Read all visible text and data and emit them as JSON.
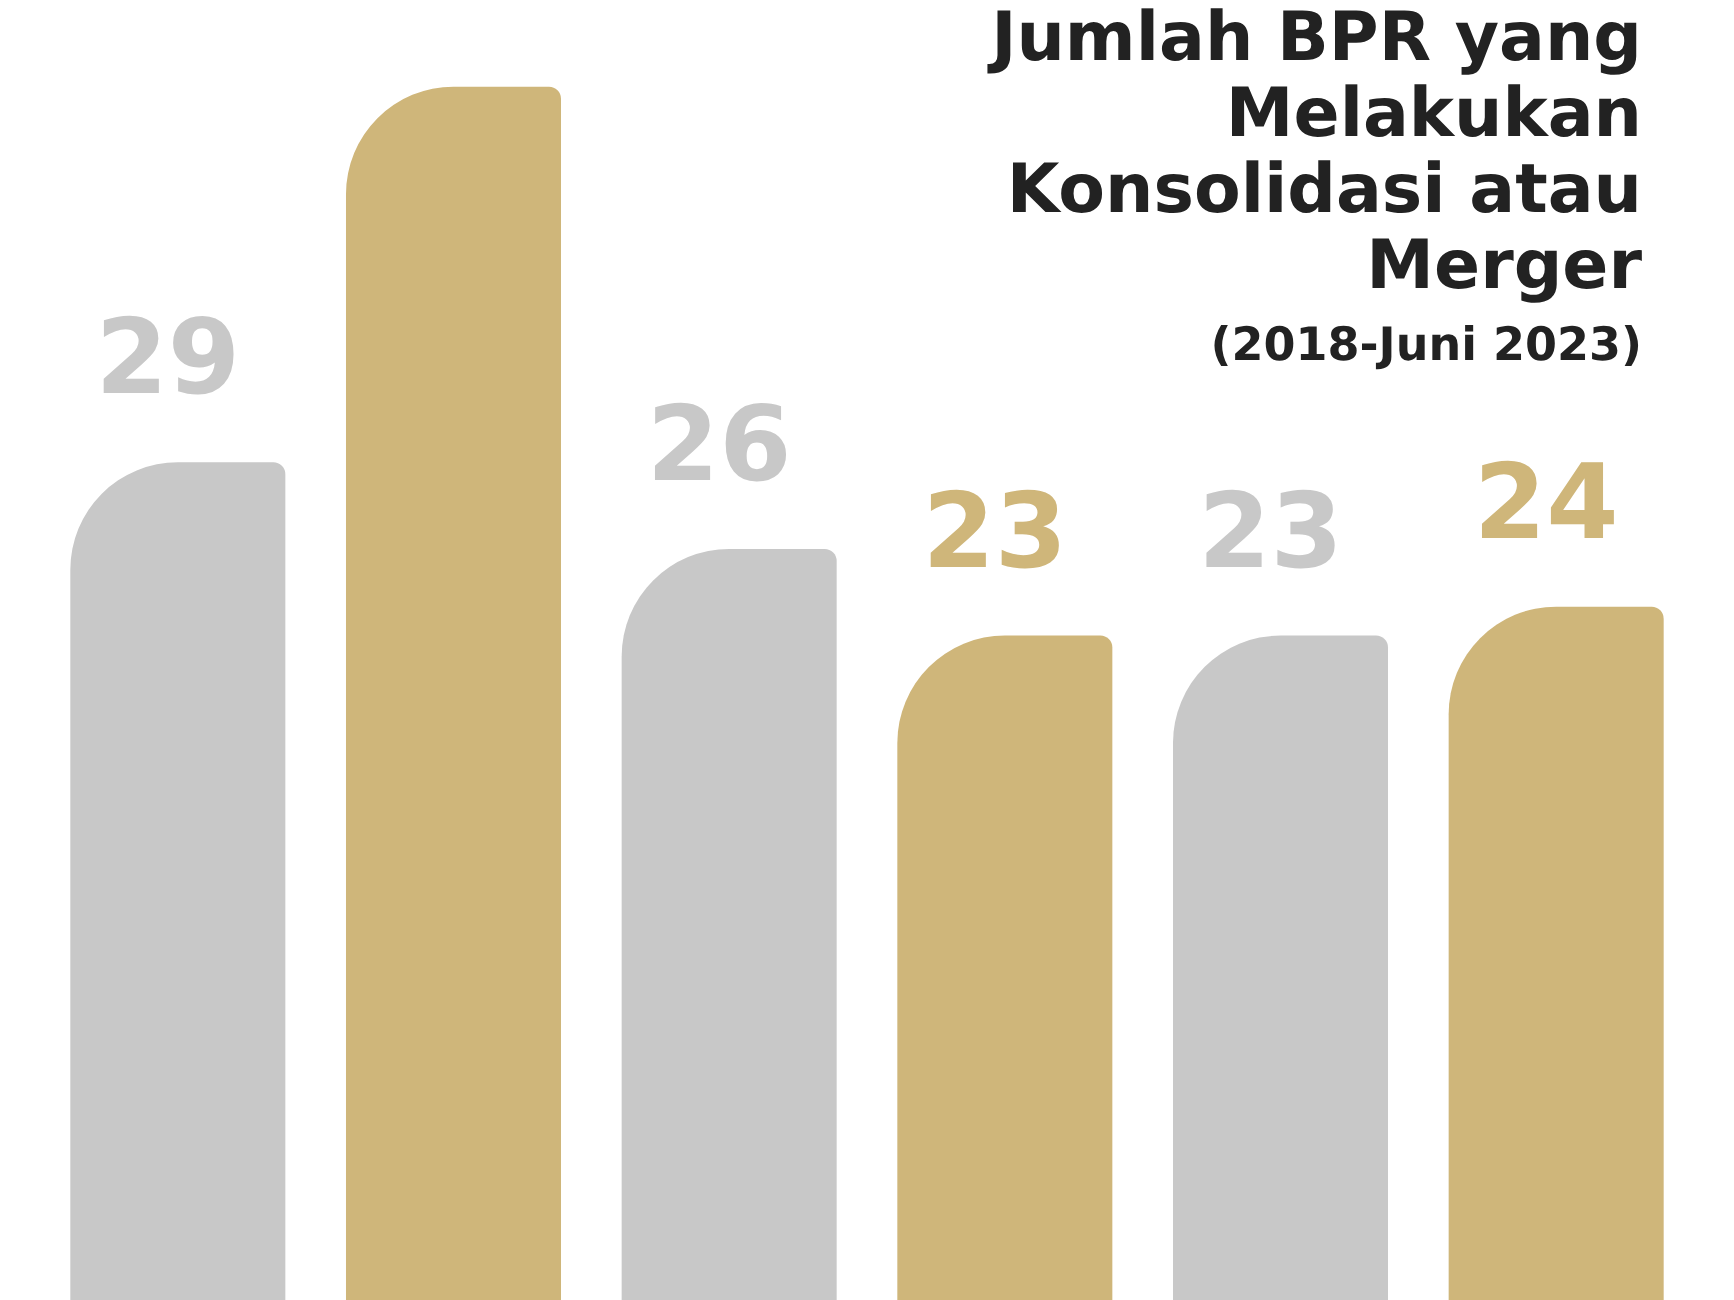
{
  "chart_data": {
    "type": "bar",
    "title": "Jumlah BPR yang Melakukan Konsolidasi atau Merger",
    "subtitle": "(2018-Juni 2023)",
    "categories": [
      null,
      null,
      null,
      null,
      null,
      null
    ],
    "values": [
      29,
      42,
      26,
      23,
      23,
      24
    ],
    "colors": [
      "#c8c8c8",
      "#cfb67a",
      "#c8c8c8",
      "#cfb67a",
      "#c8c8c8",
      "#cfb67a"
    ],
    "value_labels": [
      "29",
      null,
      "26",
      "23",
      "23",
      "24"
    ],
    "tick_labels": false,
    "legend": false
  }
}
